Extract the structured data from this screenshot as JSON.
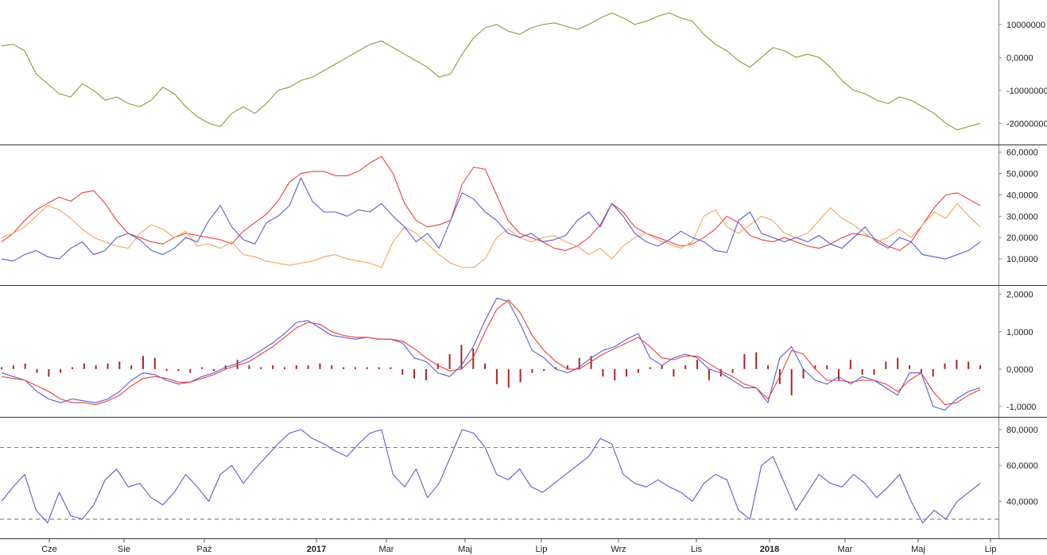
{
  "chart_data": {
    "type": "line",
    "time_axis": {
      "labels": [
        "Cze",
        "Sie",
        "Paź",
        "2017",
        "Mar",
        "Maj",
        "Lip",
        "Wrz",
        "Lis",
        "2018",
        "Mar",
        "Maj",
        "Lip"
      ],
      "bold": [
        false,
        false,
        false,
        true,
        false,
        false,
        false,
        false,
        false,
        true,
        false,
        false,
        false
      ]
    },
    "panels": [
      {
        "id": "accumulation",
        "type": "line",
        "ylim": [
          -25000000,
          16000000
        ],
        "ticks": [
          10000000,
          0,
          -10000000,
          -20000000
        ],
        "tick_labels": [
          "10000000",
          "0,0000",
          "-10000000",
          "-20000000"
        ],
        "series": [
          {
            "color": "#8a9a3c",
            "values": [
              3500000,
              4000000,
              2000000,
              -5000000,
              -8000000,
              -11000000,
              -12000000,
              -8000000,
              -10000000,
              -13000000,
              -12000000,
              -14000000,
              -15000000,
              -13000000,
              -9000000,
              -11000000,
              -15000000,
              -18000000,
              -20000000,
              -21000000,
              -17000000,
              -15000000,
              -17000000,
              -14000000,
              -10000000,
              -9000000,
              -7000000,
              -6000000,
              -4000000,
              -2000000,
              0,
              2000000,
              4000000,
              5000000,
              3000000,
              1000000,
              -1000000,
              -3000000,
              -6000000,
              -5000000,
              1000000,
              6000000,
              9000000,
              10000000,
              8000000,
              7000000,
              9000000,
              10000000,
              10500000,
              9500000,
              8500000,
              10000000,
              12000000,
              13500000,
              12000000,
              10000000,
              11000000,
              12500000,
              13500000,
              12000000,
              11000000,
              7000000,
              4000000,
              2000000,
              -1000000,
              -3000000,
              0,
              3000000,
              2000000,
              0,
              1000000,
              0,
              -3000000,
              -7000000,
              -10000000,
              -11000000,
              -13000000,
              -14000000,
              -12000000,
              -13000000,
              -15000000,
              -17000000,
              -20000000,
              -22000000,
              -21000000,
              -20000000
            ]
          }
        ]
      },
      {
        "id": "dmi",
        "type": "line",
        "ylim": [
          0,
          61000
        ],
        "ticks": [
          60000,
          50000,
          40000,
          30000,
          20000,
          10000
        ],
        "tick_labels": [
          "60,0000",
          "50,0000",
          "40,0000",
          "30,0000",
          "20,0000",
          "10,0000"
        ],
        "series": [
          {
            "color": "#e8413c",
            "values": [
              18000,
              22000,
              28000,
              33000,
              36000,
              39000,
              37000,
              41000,
              42000,
              36000,
              28000,
              22000,
              20000,
              18000,
              17000,
              20000,
              22000,
              21000,
              20000,
              19000,
              17000,
              23000,
              27000,
              31000,
              37000,
              46000,
              50000,
              51000,
              51000,
              49000,
              49000,
              51000,
              55000,
              58000,
              50000,
              36000,
              28000,
              25000,
              26000,
              28000,
              45000,
              53000,
              52000,
              40000,
              28000,
              22000,
              20000,
              18000,
              15000,
              14000,
              16000,
              20000,
              26000,
              36000,
              32000,
              25000,
              22000,
              20000,
              18000,
              16000,
              17000,
              20000,
              24000,
              30000,
              27000,
              21000,
              19000,
              18000,
              20000,
              18000,
              16000,
              15000,
              17000,
              20000,
              22000,
              21000,
              19000,
              16000,
              14000,
              18000,
              26000,
              34000,
              40000,
              41000,
              38000,
              35000
            ]
          },
          {
            "color": "#f4a460",
            "values": [
              20000,
              22000,
              25000,
              30000,
              35000,
              33000,
              29000,
              24000,
              20000,
              18000,
              16000,
              15000,
              22000,
              26000,
              24000,
              20000,
              23000,
              16000,
              17000,
              15000,
              18000,
              12000,
              11000,
              9000,
              8000,
              7000,
              8000,
              9000,
              11000,
              12000,
              10000,
              9000,
              8000,
              6000,
              18000,
              25000,
              22000,
              17000,
              12000,
              8000,
              6000,
              6000,
              10000,
              20000,
              24000,
              20000,
              18000,
              20000,
              21000,
              18000,
              16000,
              12000,
              15000,
              10000,
              16000,
              20000,
              22000,
              19000,
              17000,
              15000,
              18000,
              30000,
              33000,
              25000,
              22000,
              26000,
              30000,
              28000,
              22000,
              20000,
              22000,
              28000,
              34000,
              29000,
              26000,
              22000,
              18000,
              20000,
              24000,
              20000,
              26000,
              32000,
              29000,
              36000,
              30000,
              25000
            ]
          },
          {
            "color": "#5b5bd6",
            "values": [
              10000,
              9000,
              12000,
              14000,
              11000,
              10000,
              15000,
              18000,
              12000,
              14000,
              20000,
              22000,
              19000,
              14000,
              12000,
              15000,
              20000,
              18000,
              28000,
              35000,
              25000,
              19000,
              17000,
              27000,
              30000,
              35000,
              48000,
              37000,
              32000,
              32000,
              30000,
              33000,
              32000,
              36000,
              30000,
              25000,
              18000,
              22000,
              15000,
              28000,
              41000,
              38000,
              32000,
              28000,
              22000,
              20000,
              22000,
              18000,
              19000,
              21000,
              28000,
              32000,
              25000,
              36000,
              30000,
              22000,
              18000,
              16000,
              19000,
              23000,
              20000,
              18000,
              14000,
              13000,
              28000,
              32000,
              22000,
              20000,
              18000,
              20000,
              18000,
              21000,
              17000,
              15000,
              20000,
              25000,
              18000,
              15000,
              20000,
              18000,
              12000,
              11000,
              10000,
              12000,
              14000,
              18000
            ]
          }
        ]
      },
      {
        "id": "macd",
        "type": "line",
        "ylim": [
          -1.15,
          2.1
        ],
        "ticks": [
          2,
          1,
          0,
          -1
        ],
        "tick_labels": [
          "2,0000",
          "1,0000",
          "0,0000",
          "-1,0000"
        ],
        "histogram": {
          "color": "#b22222",
          "values": [
            0.05,
            0.1,
            0.15,
            -0.1,
            -0.2,
            -0.1,
            0.05,
            0.15,
            0.1,
            0.15,
            0.2,
            0.1,
            0.35,
            0.3,
            -0.05,
            -0.05,
            -0.1,
            0.05,
            -0.05,
            0.1,
            0.25,
            0.1,
            0.05,
            0.1,
            0.05,
            0.1,
            0.1,
            0.15,
            0.1,
            0.05,
            0.05,
            0.05,
            0.05,
            0.05,
            -0.15,
            -0.25,
            -0.3,
            0.15,
            0.4,
            0.65,
            0.55,
            0.15,
            -0.4,
            -0.5,
            -0.35,
            -0.1,
            -0.05,
            0.05,
            0.1,
            0.3,
            0.35,
            -0.2,
            -0.3,
            -0.2,
            -0.1,
            0.05,
            0.1,
            -0.2,
            0.1,
            0.25,
            -0.3,
            -0.2,
            -0.1,
            0.4,
            0.45,
            0.1,
            -0.4,
            -0.7,
            -0.25,
            0.1,
            0.1,
            -0.3,
            0.25,
            -0.15,
            -0.15,
            0.2,
            0.3,
            0.1,
            -0.1,
            -0.2,
            0.15,
            0.25,
            0.2,
            0.1
          ]
        },
        "series": [
          {
            "color": "#5b5bd6",
            "values": [
              -0.1,
              -0.2,
              -0.3,
              -0.6,
              -0.8,
              -0.9,
              -0.8,
              -0.85,
              -0.9,
              -0.8,
              -0.6,
              -0.3,
              -0.1,
              -0.15,
              -0.3,
              -0.4,
              -0.35,
              -0.2,
              -0.1,
              0.05,
              0.15,
              0.3,
              0.5,
              0.7,
              0.95,
              1.25,
              1.3,
              1.1,
              0.9,
              0.85,
              0.8,
              0.85,
              0.8,
              0.8,
              0.7,
              0.3,
              0.2,
              -0.1,
              -0.2,
              0.1,
              0.6,
              1.3,
              1.9,
              1.8,
              1.2,
              0.5,
              0.3,
              0.0,
              -0.1,
              0.05,
              0.3,
              0.5,
              0.6,
              0.8,
              0.95,
              0.3,
              0.1,
              0.3,
              0.4,
              0.3,
              0.0,
              -0.1,
              -0.3,
              -0.5,
              -0.5,
              -0.9,
              0.3,
              0.6,
              0.0,
              -0.3,
              -0.4,
              -0.2,
              -0.4,
              -0.2,
              -0.3,
              -0.5,
              -0.7,
              -0.1,
              -0.1,
              -1.0,
              -1.1,
              -0.8,
              -0.6,
              -0.5
            ]
          },
          {
            "color": "#e8413c",
            "values": [
              -0.2,
              -0.25,
              -0.3,
              -0.45,
              -0.6,
              -0.8,
              -0.9,
              -0.9,
              -0.95,
              -0.85,
              -0.7,
              -0.45,
              -0.25,
              -0.2,
              -0.25,
              -0.35,
              -0.35,
              -0.25,
              -0.15,
              0.0,
              0.1,
              0.2,
              0.4,
              0.6,
              0.85,
              1.1,
              1.25,
              1.2,
              1.0,
              0.9,
              0.85,
              0.85,
              0.8,
              0.8,
              0.75,
              0.55,
              0.3,
              0.1,
              -0.05,
              0.0,
              0.3,
              1.0,
              1.6,
              1.85,
              1.5,
              0.9,
              0.5,
              0.2,
              0.0,
              0.0,
              0.2,
              0.4,
              0.55,
              0.7,
              0.85,
              0.6,
              0.3,
              0.25,
              0.35,
              0.35,
              0.15,
              -0.05,
              -0.2,
              -0.4,
              -0.5,
              -0.8,
              -0.2,
              0.5,
              0.4,
              0.0,
              -0.3,
              -0.3,
              -0.35,
              -0.3,
              -0.3,
              -0.4,
              -0.6,
              -0.3,
              -0.1,
              -0.6,
              -0.95,
              -0.9,
              -0.7,
              -0.55
            ]
          }
        ]
      },
      {
        "id": "rsi",
        "type": "line",
        "ylim": [
          22,
          84
        ],
        "ticks": [
          80,
          60,
          40
        ],
        "tick_labels": [
          "80,0000",
          "60,0000",
          "40,0000"
        ],
        "reference_lines": [
          70,
          30
        ],
        "series": [
          {
            "color": "#5b5bd6",
            "values": [
              40,
              48,
              55,
              35,
              28,
              45,
              32,
              30,
              38,
              52,
              58,
              48,
              50,
              42,
              38,
              45,
              55,
              48,
              40,
              55,
              60,
              50,
              58,
              65,
              72,
              78,
              80,
              75,
              72,
              68,
              65,
              72,
              78,
              80,
              55,
              48,
              58,
              42,
              50,
              65,
              80,
              78,
              70,
              55,
              52,
              58,
              48,
              45,
              50,
              55,
              60,
              65,
              75,
              72,
              55,
              50,
              48,
              52,
              48,
              45,
              40,
              50,
              55,
              52,
              35,
              30,
              60,
              65,
              50,
              35,
              45,
              55,
              50,
              48,
              55,
              50,
              42,
              48,
              55,
              40,
              28,
              35,
              30,
              40,
              45,
              50
            ]
          }
        ]
      }
    ]
  }
}
